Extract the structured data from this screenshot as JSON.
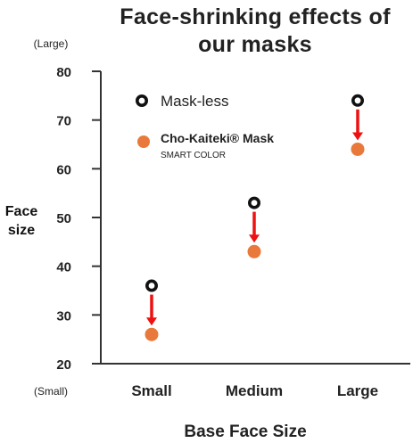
{
  "chart_data": {
    "type": "scatter",
    "title_lines": [
      "Face-shrinking effects of",
      "our masks"
    ],
    "ylabel_lines": [
      "Face",
      "size"
    ],
    "xlabel": "Base Face Size",
    "y_top_note": "(Large)",
    "y_bottom_note": "(Small)",
    "ylim": [
      20,
      80
    ],
    "yticks": [
      20,
      30,
      40,
      50,
      60,
      70,
      80
    ],
    "categories": [
      "Small",
      "Medium",
      "Large"
    ],
    "series": [
      {
        "name": "Mask-less",
        "values": [
          36,
          53,
          74
        ],
        "marker": "ring",
        "color": "#111111"
      },
      {
        "name": "Cho-Kaiteki® Mask",
        "subtitle": "SMART COLOR",
        "values": [
          26,
          43,
          64
        ],
        "marker": "filled-circle",
        "color": "#E8793A"
      }
    ],
    "arrows": {
      "color": "#EE1111"
    },
    "grid": false,
    "legend_position": "top-left"
  }
}
